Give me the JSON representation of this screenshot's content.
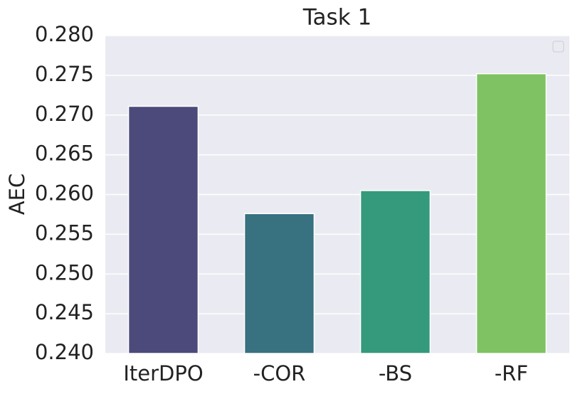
{
  "chart_data": {
    "type": "bar",
    "title": "Task 1",
    "y_label": "AEC",
    "categories": [
      "IterDPO",
      "-COR",
      "-BS",
      "-RF"
    ],
    "values": [
      0.2711,
      0.2576,
      0.2605,
      0.2752
    ],
    "colors": [
      "#4b4a7b",
      "#38717f",
      "#35997b",
      "#7fc263"
    ],
    "ylim": [
      0.24,
      0.28
    ],
    "yticks": [
      {
        "value": 0.24,
        "label": "0.240"
      },
      {
        "value": 0.245,
        "label": "0.245"
      },
      {
        "value": 0.25,
        "label": "0.250"
      },
      {
        "value": 0.255,
        "label": "0.255"
      },
      {
        "value": 0.26,
        "label": "0.260"
      },
      {
        "value": 0.265,
        "label": "0.265"
      },
      {
        "value": 0.27,
        "label": "0.270"
      },
      {
        "value": 0.275,
        "label": "0.275"
      },
      {
        "value": 0.28,
        "label": "0.280"
      }
    ],
    "grid": true
  }
}
